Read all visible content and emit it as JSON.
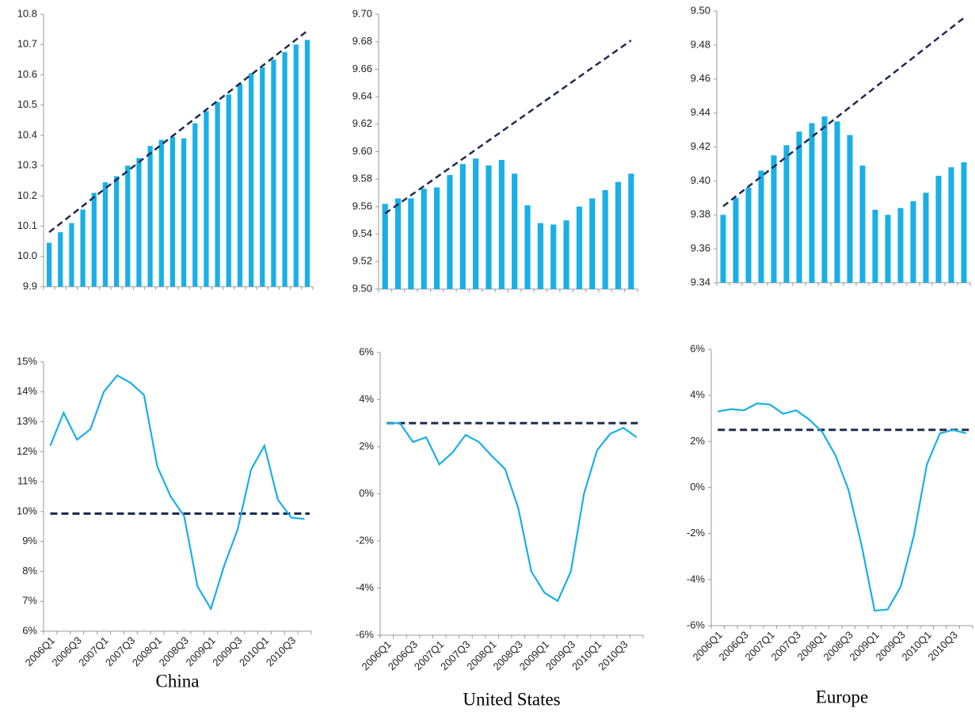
{
  "chart_data": [
    {
      "type": "bar",
      "color": "#1aafe6",
      "trend_color": "#1f2b50",
      "values": [
        10.045,
        10.08,
        10.11,
        10.155,
        10.21,
        10.245,
        10.265,
        10.3,
        10.325,
        10.365,
        10.385,
        10.395,
        10.39,
        10.44,
        10.48,
        10.51,
        10.535,
        10.57,
        10.605,
        10.625,
        10.65,
        10.675,
        10.7,
        10.715
      ],
      "trend": [
        10.08,
        10.745
      ],
      "ylim": [
        9.9,
        10.8
      ],
      "yticks": [
        {
          "value": 9.9,
          "label": "9.9"
        },
        {
          "value": 10.0,
          "label": "10.0"
        },
        {
          "value": 10.1,
          "label": "10.1"
        },
        {
          "value": 10.2,
          "label": "10.2"
        },
        {
          "value": 10.3,
          "label": "10.3"
        },
        {
          "value": 10.4,
          "label": "10.4"
        },
        {
          "value": 10.5,
          "label": "10.5"
        },
        {
          "value": 10.6,
          "label": "10.6"
        },
        {
          "value": 10.7,
          "label": "10.7"
        },
        {
          "value": 10.8,
          "label": "10.8"
        }
      ]
    },
    {
      "type": "bar",
      "color": "#1aafe6",
      "trend_color": "#1f2b50",
      "values": [
        9.562,
        9.566,
        9.566,
        9.573,
        9.574,
        9.583,
        9.591,
        9.595,
        9.59,
        9.594,
        9.584,
        9.561,
        9.548,
        9.547,
        9.55,
        9.56,
        9.566,
        9.572,
        9.578,
        9.584
      ],
      "trend": [
        9.555,
        9.681
      ],
      "ylim": [
        9.5,
        9.7
      ],
      "yticks": [
        {
          "value": 9.5,
          "label": "9.50"
        },
        {
          "value": 9.52,
          "label": "9.52"
        },
        {
          "value": 9.54,
          "label": "9.54"
        },
        {
          "value": 9.56,
          "label": "9.56"
        },
        {
          "value": 9.58,
          "label": "9.58"
        },
        {
          "value": 9.6,
          "label": "9.60"
        },
        {
          "value": 9.62,
          "label": "9.62"
        },
        {
          "value": 9.64,
          "label": "9.64"
        },
        {
          "value": 9.66,
          "label": "9.66"
        },
        {
          "value": 9.68,
          "label": "9.68"
        },
        {
          "value": 9.7,
          "label": "9.70"
        }
      ]
    },
    {
      "type": "bar",
      "color": "#1aafe6",
      "trend_color": "#1f2b50",
      "values": [
        9.38,
        9.39,
        9.396,
        9.406,
        9.415,
        9.421,
        9.429,
        9.434,
        9.438,
        9.435,
        9.427,
        9.409,
        9.383,
        9.38,
        9.384,
        9.388,
        9.393,
        9.403,
        9.408,
        9.411
      ],
      "trend": [
        9.385,
        9.496
      ],
      "ylim": [
        9.34,
        9.5
      ],
      "yticks": [
        {
          "value": 9.34,
          "label": "9.34"
        },
        {
          "value": 9.36,
          "label": "9.36"
        },
        {
          "value": 9.38,
          "label": "9.38"
        },
        {
          "value": 9.4,
          "label": "9.40"
        },
        {
          "value": 9.42,
          "label": "9.42"
        },
        {
          "value": 9.44,
          "label": "9.44"
        },
        {
          "value": 9.46,
          "label": "9.46"
        },
        {
          "value": 9.48,
          "label": "9.48"
        },
        {
          "value": 9.5,
          "label": "9.50"
        }
      ]
    },
    {
      "type": "line",
      "color": "#1aafe6",
      "trend_color": "#1f2b50",
      "caption": "China",
      "categories": [
        "2006Q1",
        null,
        "2006Q3",
        null,
        "2007Q1",
        null,
        "2007Q3",
        null,
        "2008Q1",
        null,
        "2008Q3",
        null,
        "2009Q1",
        null,
        "2009Q3",
        null,
        "2010Q1",
        null,
        "2010Q3",
        null
      ],
      "values": [
        12.2,
        13.3,
        12.4,
        12.75,
        14.0,
        14.55,
        14.3,
        13.9,
        11.5,
        10.5,
        9.85,
        7.5,
        6.75,
        8.2,
        9.4,
        11.4,
        12.2,
        10.4,
        9.8,
        9.75
      ],
      "reference": 9.93,
      "ylim": [
        6,
        15
      ],
      "yticks": [
        {
          "value": 6,
          "label": "6%"
        },
        {
          "value": 7,
          "label": "7%"
        },
        {
          "value": 8,
          "label": "8%"
        },
        {
          "value": 9,
          "label": "9%"
        },
        {
          "value": 10,
          "label": "10%"
        },
        {
          "value": 11,
          "label": "11%"
        },
        {
          "value": 12,
          "label": "12%"
        },
        {
          "value": 13,
          "label": "13%"
        },
        {
          "value": 14,
          "label": "14%"
        },
        {
          "value": 15,
          "label": "15%"
        }
      ]
    },
    {
      "type": "line",
      "color": "#1aafe6",
      "trend_color": "#1f2b50",
      "caption": "United States",
      "categories": [
        "2006Q1",
        null,
        "2006Q3",
        null,
        "2007Q1",
        null,
        "2007Q3",
        null,
        "2008Q1",
        null,
        "2008Q3",
        null,
        "2009Q1",
        null,
        "2009Q3",
        null,
        "2010Q1",
        null,
        "2010Q3",
        null
      ],
      "values": [
        3.0,
        3.0,
        2.2,
        2.4,
        1.25,
        1.75,
        2.5,
        2.2,
        1.6,
        1.05,
        -0.6,
        -3.3,
        -4.2,
        -4.55,
        -3.3,
        0,
        1.85,
        2.55,
        2.8,
        2.4
      ],
      "reference": 3.0,
      "ylim": [
        -6,
        6
      ],
      "yticks": [
        {
          "value": -6,
          "label": "-6%"
        },
        {
          "value": -4,
          "label": "-4%"
        },
        {
          "value": -2,
          "label": "-2%"
        },
        {
          "value": 0,
          "label": "0%"
        },
        {
          "value": 2,
          "label": "2%"
        },
        {
          "value": 4,
          "label": "4%"
        },
        {
          "value": 6,
          "label": "6%"
        }
      ]
    },
    {
      "type": "line",
      "color": "#1aafe6",
      "trend_color": "#1f2b50",
      "caption": "Europe",
      "categories": [
        "2006Q1",
        null,
        "2006Q3",
        null,
        "2007Q1",
        null,
        "2007Q3",
        null,
        "2008Q1",
        null,
        "2008Q3",
        null,
        "2009Q1",
        null,
        "2009Q3",
        null,
        "2010Q1",
        null,
        "2010Q3",
        null
      ],
      "values": [
        3.3,
        3.4,
        3.35,
        3.65,
        3.6,
        3.2,
        3.35,
        2.95,
        2.4,
        1.4,
        -0.1,
        -2.5,
        -5.35,
        -5.3,
        -4.3,
        -2.1,
        1.0,
        2.35,
        2.5,
        2.35
      ],
      "reference": 2.5,
      "ylim": [
        -6,
        6
      ],
      "yticks": [
        {
          "value": -6,
          "label": "-6%"
        },
        {
          "value": -4,
          "label": "-4%"
        },
        {
          "value": -2,
          "label": "-2%"
        },
        {
          "value": 0,
          "label": "0%"
        },
        {
          "value": 2,
          "label": "2%"
        },
        {
          "value": 4,
          "label": "4%"
        },
        {
          "value": 6,
          "label": "6%"
        }
      ]
    }
  ]
}
